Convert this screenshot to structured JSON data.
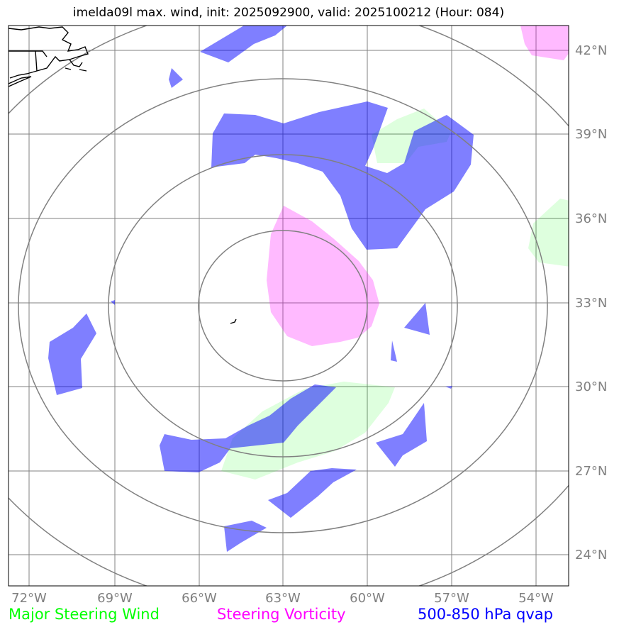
{
  "title": "imelda09l max. wind, init: 2025092900, valid: 2025100212 (Hour: 084)",
  "map": {
    "lon_labels": [
      "72°W",
      "69°W",
      "66°W",
      "63°W",
      "60°W",
      "57°W",
      "54°W"
    ],
    "lat_labels": [
      "42°N",
      "39°N",
      "36°N",
      "33°N",
      "30°N",
      "27°N",
      "24°N"
    ],
    "range_rings": [
      "ring-1",
      "ring-2",
      "ring-3",
      "ring-4"
    ],
    "colors": {
      "steering_wind": "#00ff00",
      "steering_vorticity": "#ff00ff",
      "qvap": "#0000ff",
      "grid": "#808080",
      "coastline": "#000000"
    }
  },
  "legend": {
    "wind_label": "Major Steering Wind",
    "vorticity_label": "Steering Vorticity",
    "qvap_label": "500-850 hPa qvap"
  }
}
